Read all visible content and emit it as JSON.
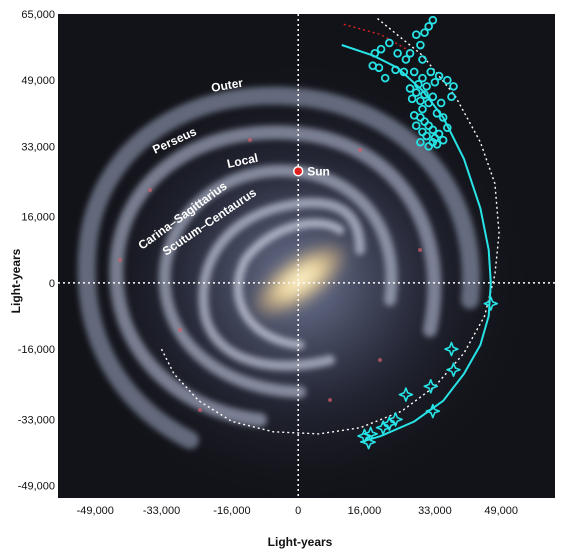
{
  "chart_data": {
    "type": "scatter",
    "xlabel": "Light-years",
    "ylabel": "Light-years",
    "xlim": [
      -58000,
      62000
    ],
    "ylim": [
      -52000,
      65000
    ],
    "x_ticks": [
      "-49,000",
      "-33,000",
      "-16,000",
      "0",
      "16,000",
      "33,000",
      "49,000"
    ],
    "x_tick_values": [
      -49000,
      -33000,
      -16000,
      0,
      16000,
      33000,
      49000
    ],
    "y_ticks": [
      "65,000",
      "49,000",
      "33,000",
      "16,000",
      "0",
      "-16,000",
      "-33,000",
      "-49,000"
    ],
    "y_tick_values": [
      65000,
      49000,
      33000,
      16000,
      0,
      -16000,
      -33000,
      -49000
    ],
    "grid": "dotted lines through origin",
    "background": "Milky Way galaxy image",
    "arm_labels": [
      "Outer",
      "Perseus",
      "Local",
      "Carina–Sagittarius",
      "Scutum–Centaurus"
    ],
    "sun": {
      "label": "Sun",
      "x": 0,
      "y": 27000,
      "color": "#e02020"
    },
    "colors": {
      "stream": "#27e3e6",
      "model_path": "#ffffff",
      "sun": "#e02020"
    },
    "series": [
      {
        "marker": "circle",
        "points": [
          [
            32500,
            63500
          ],
          [
            31500,
            62000
          ],
          [
            30500,
            60500
          ],
          [
            28500,
            60000
          ],
          [
            29500,
            57500
          ],
          [
            27000,
            55500
          ],
          [
            22000,
            58000
          ],
          [
            20000,
            56500
          ],
          [
            18500,
            55500
          ],
          [
            24000,
            55500
          ],
          [
            26000,
            54000
          ],
          [
            30000,
            54000
          ],
          [
            32000,
            51000
          ],
          [
            34000,
            50000
          ],
          [
            36000,
            49000
          ],
          [
            19500,
            52000
          ],
          [
            18000,
            52500
          ],
          [
            23500,
            51500
          ],
          [
            25500,
            51000
          ],
          [
            28000,
            51000
          ],
          [
            30000,
            49500
          ],
          [
            29000,
            48000
          ],
          [
            31000,
            47500
          ],
          [
            33000,
            48500
          ],
          [
            37500,
            47500
          ],
          [
            27000,
            47000
          ],
          [
            28500,
            46000
          ],
          [
            30500,
            45500
          ],
          [
            32500,
            45000
          ],
          [
            27500,
            44500
          ],
          [
            29500,
            44000
          ],
          [
            31500,
            43500
          ],
          [
            34500,
            43500
          ],
          [
            37000,
            45000
          ],
          [
            30000,
            42000
          ],
          [
            28000,
            40500
          ],
          [
            29500,
            40000
          ],
          [
            30500,
            39000
          ],
          [
            28500,
            38000
          ],
          [
            31500,
            38000
          ],
          [
            32500,
            37000
          ],
          [
            30000,
            36500
          ],
          [
            31000,
            35500
          ],
          [
            33000,
            35000
          ],
          [
            34000,
            36000
          ],
          [
            32500,
            34000
          ],
          [
            29500,
            34000
          ],
          [
            31500,
            33000
          ],
          [
            33500,
            33500
          ],
          [
            35000,
            34500
          ],
          [
            36000,
            37500
          ],
          [
            35000,
            40000
          ],
          [
            21000,
            49500
          ],
          [
            33500,
            41000
          ]
        ]
      },
      {
        "marker": "star",
        "points": [
          [
            46500,
            -5000
          ],
          [
            37000,
            -16000
          ],
          [
            37500,
            -21000
          ],
          [
            32000,
            -25000
          ],
          [
            26000,
            -27000
          ],
          [
            32500,
            -31000
          ],
          [
            23500,
            -33000
          ],
          [
            22000,
            -34000
          ],
          [
            20500,
            -35000
          ],
          [
            17500,
            -36500
          ],
          [
            16000,
            -37000
          ],
          [
            17000,
            -38500
          ]
        ]
      }
    ],
    "fit_curve": {
      "color": "#27e3e6",
      "points": [
        [
          10500,
          57500
        ],
        [
          18000,
          55000
        ],
        [
          24000,
          52000
        ],
        [
          30000,
          46500
        ],
        [
          35000,
          40000
        ],
        [
          40000,
          30000
        ],
        [
          44000,
          18000
        ],
        [
          46000,
          8000
        ],
        [
          46500,
          0
        ],
        [
          46000,
          -8000
        ],
        [
          44000,
          -15000
        ],
        [
          40000,
          -22000
        ],
        [
          35000,
          -28500
        ],
        [
          28000,
          -33500
        ],
        [
          20000,
          -37000
        ],
        [
          15000,
          -38500
        ]
      ]
    },
    "model_path": {
      "style": "dotted",
      "color": "#ffffff",
      "points": [
        [
          -33000,
          -16000
        ],
        [
          -30000,
          -22000
        ],
        [
          -24000,
          -28500
        ],
        [
          -16000,
          -33500
        ],
        [
          -6000,
          -36000
        ],
        [
          5000,
          -36500
        ],
        [
          15000,
          -35000
        ],
        [
          25000,
          -31000
        ],
        [
          33000,
          -25000
        ],
        [
          40000,
          -17000
        ],
        [
          45000,
          -8000
        ],
        [
          47500,
          2000
        ],
        [
          48500,
          12000
        ],
        [
          47500,
          24000
        ],
        [
          44000,
          34000
        ],
        [
          38000,
          45000
        ],
        [
          30000,
          55000
        ],
        [
          19000,
          64000
        ]
      ]
    },
    "red_dotted_path": {
      "style": "dotted",
      "color": "#e02020",
      "points": [
        [
          11000,
          62500
        ],
        [
          20000,
          60000
        ],
        [
          27000,
          56000
        ]
      ]
    }
  }
}
